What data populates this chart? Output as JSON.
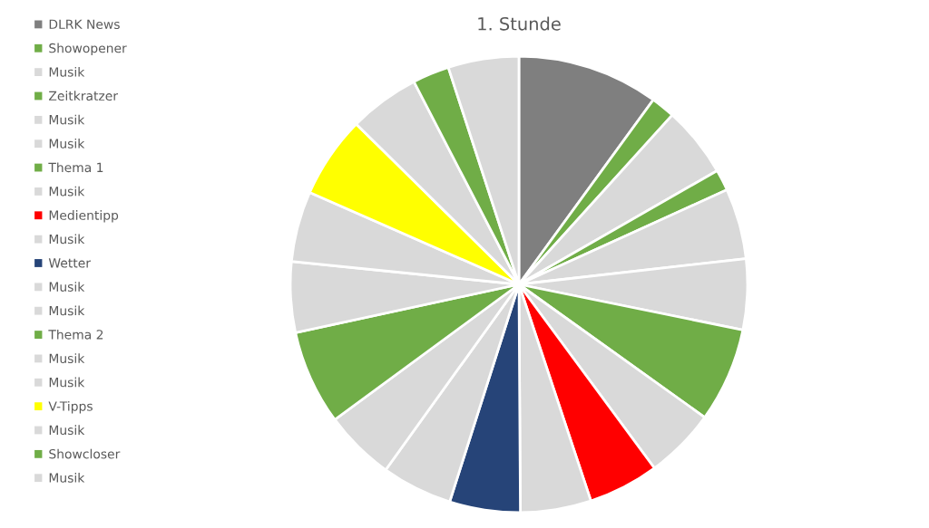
{
  "chart_data": {
    "type": "pie",
    "title": "1. Stunde",
    "categories": [
      "DLRK News",
      "Showopener",
      "Musik",
      "Zeitkratzer",
      "Musik",
      "Musik",
      "Thema 1",
      "Musik",
      "Medientipp",
      "Musik",
      "Wetter",
      "Musik",
      "Musik",
      "Thema 2",
      "Musik",
      "Musik",
      "V-Tipps",
      "Musik",
      "Showcloser",
      "Musik"
    ],
    "values": [
      10,
      1.7,
      5,
      1.5,
      5,
      5,
      6.7,
      5,
      5,
      5,
      5,
      5,
      5,
      6.7,
      5,
      5,
      5.8,
      5,
      2.6,
      5
    ],
    "colors": [
      "#7f7f7f",
      "#70ad47",
      "#d9d9d9",
      "#70ad47",
      "#d9d9d9",
      "#d9d9d9",
      "#70ad47",
      "#d9d9d9",
      "#ff0000",
      "#d9d9d9",
      "#264478",
      "#d9d9d9",
      "#d9d9d9",
      "#70ad47",
      "#d9d9d9",
      "#d9d9d9",
      "#ffff00",
      "#d9d9d9",
      "#70ad47",
      "#d9d9d9"
    ],
    "legend": "left"
  }
}
